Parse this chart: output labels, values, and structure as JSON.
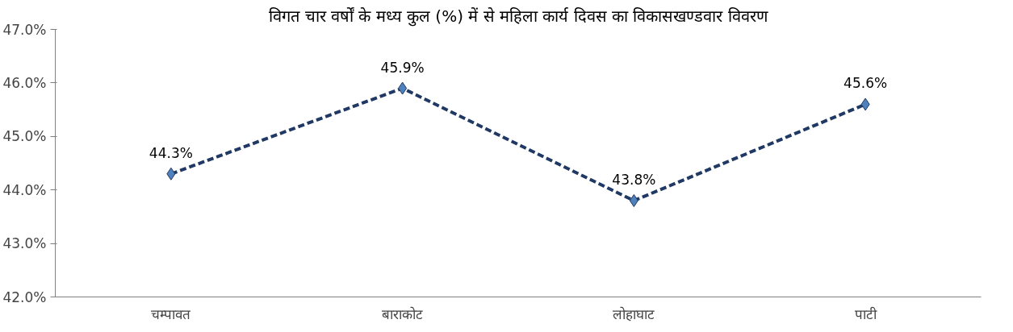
{
  "chart_data": {
    "type": "line",
    "title": "विगत चार वर्षों के मध्य कुल (%) में से महिला कार्य दिवस का विकासखण्डवार विवरण",
    "categories": [
      "चम्पावत",
      "बाराकोट",
      "लोहाघाट",
      "पाटी"
    ],
    "series": [
      {
        "color": "#1f3864",
        "values": [
          44.3,
          45.9,
          43.8,
          45.6
        ],
        "value_labels": [
          "44.3%",
          "45.9%",
          "43.8%",
          "45.6%"
        ]
      }
    ],
    "ylim": [
      42,
      47
    ],
    "yticks": [
      {
        "value": 42,
        "label": "42.0%"
      },
      {
        "value": 43,
        "label": "43.0%"
      },
      {
        "value": 44,
        "label": "44.0%"
      },
      {
        "value": 45,
        "label": "45.0%"
      },
      {
        "value": 46,
        "label": "46.0%"
      },
      {
        "value": 47,
        "label": "47.0%"
      }
    ],
    "grid": false,
    "marker": "diamond",
    "line_style": "dashed"
  }
}
